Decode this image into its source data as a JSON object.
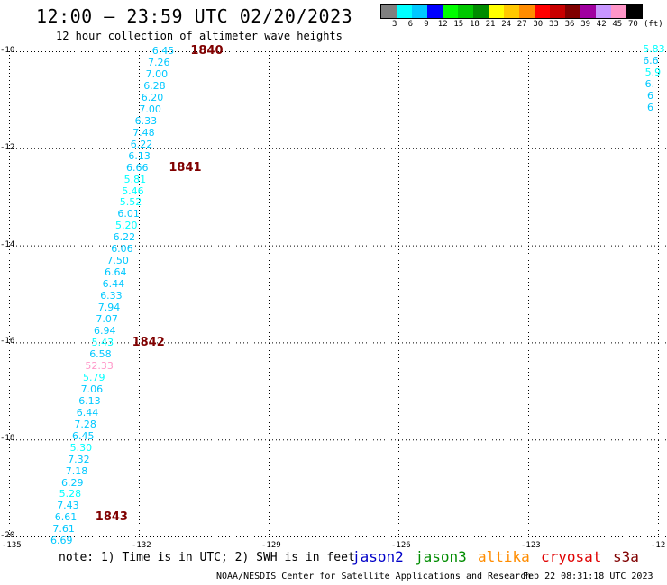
{
  "title": "12:00 – 23:59 UTC 02/20/2023",
  "subtitle": "12 hour collection of altimeter wave heights",
  "colorbar": {
    "colors": [
      "#808080",
      "#00ffff",
      "#00c8ff",
      "#0000ff",
      "#00ff00",
      "#00c800",
      "#008c00",
      "#ffff00",
      "#ffc800",
      "#ff8c00",
      "#ff0000",
      "#c80000",
      "#800000",
      "#a000a0",
      "#c896ff",
      "#ff96c8",
      "#000000"
    ],
    "labels": [
      "3",
      "6",
      "9",
      "12",
      "15",
      "18",
      "21",
      "24",
      "27",
      "30",
      "33",
      "36",
      "39",
      "42",
      "45",
      "70"
    ],
    "unit": "(ft)"
  },
  "map": {
    "lon_min": -135,
    "lon_max": -120,
    "lat_min": -20,
    "lat_max": -10,
    "x_ticks": [
      "-135",
      "-132",
      "-129",
      "-126",
      "-123",
      "-12"
    ],
    "y_ticks": [
      "-10",
      "-12",
      "-14",
      "-16",
      "-18",
      "-20"
    ]
  },
  "track": [
    {
      "lon": -131.4,
      "lat": -10.0,
      "v": "6.45",
      "c": "#00c8ff"
    },
    {
      "lon": -131.5,
      "lat": -10.24,
      "v": "7.26",
      "c": "#00c8ff"
    },
    {
      "lon": -131.55,
      "lat": -10.48,
      "v": "7.00",
      "c": "#00c8ff"
    },
    {
      "lon": -131.6,
      "lat": -10.72,
      "v": "6.28",
      "c": "#00c8ff"
    },
    {
      "lon": -131.65,
      "lat": -10.96,
      "v": "6.20",
      "c": "#00c8ff"
    },
    {
      "lon": -131.7,
      "lat": -11.2,
      "v": "7.00",
      "c": "#00c8ff"
    },
    {
      "lon": -131.8,
      "lat": -11.44,
      "v": "6.33",
      "c": "#00c8ff"
    },
    {
      "lon": -131.85,
      "lat": -11.68,
      "v": "7.48",
      "c": "#00c8ff"
    },
    {
      "lon": -131.9,
      "lat": -11.92,
      "v": "6.22",
      "c": "#00c8ff"
    },
    {
      "lon": -131.95,
      "lat": -12.16,
      "v": "6.13",
      "c": "#00c8ff"
    },
    {
      "lon": -132.0,
      "lat": -12.4,
      "v": "6.66",
      "c": "#00c8ff"
    },
    {
      "lon": -132.05,
      "lat": -12.64,
      "v": "5.81",
      "c": "#00ffff"
    },
    {
      "lon": -132.1,
      "lat": -12.88,
      "v": "5.46",
      "c": "#00ffff"
    },
    {
      "lon": -132.15,
      "lat": -13.12,
      "v": "5.52",
      "c": "#00ffff"
    },
    {
      "lon": -132.2,
      "lat": -13.36,
      "v": "6.01",
      "c": "#00c8ff"
    },
    {
      "lon": -132.25,
      "lat": -13.6,
      "v": "5.20",
      "c": "#00ffff"
    },
    {
      "lon": -132.3,
      "lat": -13.84,
      "v": "6.22",
      "c": "#00c8ff"
    },
    {
      "lon": -132.35,
      "lat": -14.08,
      "v": "6.06",
      "c": "#00c8ff"
    },
    {
      "lon": -132.45,
      "lat": -14.32,
      "v": "7.50",
      "c": "#00c8ff"
    },
    {
      "lon": -132.5,
      "lat": -14.56,
      "v": "6.64",
      "c": "#00c8ff"
    },
    {
      "lon": -132.55,
      "lat": -14.8,
      "v": "6.44",
      "c": "#00c8ff"
    },
    {
      "lon": -132.6,
      "lat": -15.04,
      "v": "6.33",
      "c": "#00c8ff"
    },
    {
      "lon": -132.65,
      "lat": -15.28,
      "v": "7.94",
      "c": "#00c8ff"
    },
    {
      "lon": -132.7,
      "lat": -15.52,
      "v": "7.07",
      "c": "#00c8ff"
    },
    {
      "lon": -132.75,
      "lat": -15.76,
      "v": "6.94",
      "c": "#00c8ff"
    },
    {
      "lon": -132.8,
      "lat": -16.0,
      "v": "5.43",
      "c": "#00ffff"
    },
    {
      "lon": -132.85,
      "lat": -16.24,
      "v": "6.58",
      "c": "#00c8ff"
    },
    {
      "lon": -132.95,
      "lat": -16.48,
      "v": "52.33",
      "c": "#ff96c8"
    },
    {
      "lon": -133.0,
      "lat": -16.72,
      "v": "5.79",
      "c": "#00ffff"
    },
    {
      "lon": -133.05,
      "lat": -16.96,
      "v": "7.06",
      "c": "#00c8ff"
    },
    {
      "lon": -133.1,
      "lat": -17.2,
      "v": "6.13",
      "c": "#00c8ff"
    },
    {
      "lon": -133.15,
      "lat": -17.44,
      "v": "6.44",
      "c": "#00c8ff"
    },
    {
      "lon": -133.2,
      "lat": -17.68,
      "v": "7.28",
      "c": "#00c8ff"
    },
    {
      "lon": -133.25,
      "lat": -17.92,
      "v": "6.45",
      "c": "#00c8ff"
    },
    {
      "lon": -133.3,
      "lat": -18.16,
      "v": "5.30",
      "c": "#00ffff"
    },
    {
      "lon": -133.35,
      "lat": -18.4,
      "v": "7.32",
      "c": "#00c8ff"
    },
    {
      "lon": -133.4,
      "lat": -18.64,
      "v": "7.18",
      "c": "#00c8ff"
    },
    {
      "lon": -133.5,
      "lat": -18.88,
      "v": "6.29",
      "c": "#00c8ff"
    },
    {
      "lon": -133.55,
      "lat": -19.12,
      "v": "5.28",
      "c": "#00ffff"
    },
    {
      "lon": -133.6,
      "lat": -19.36,
      "v": "7.43",
      "c": "#00c8ff"
    },
    {
      "lon": -133.65,
      "lat": -19.6,
      "v": "6.61",
      "c": "#00c8ff"
    },
    {
      "lon": -133.7,
      "lat": -19.84,
      "v": "7.61",
      "c": "#00c8ff"
    },
    {
      "lon": -133.75,
      "lat": -20.08,
      "v": "6.69",
      "c": "#00c8ff"
    }
  ],
  "track_right": [
    {
      "lon": -120.1,
      "lat": -9.96,
      "v": "5.83",
      "c": "#00ffff"
    },
    {
      "lon": -120.1,
      "lat": -10.2,
      "v": "6.6",
      "c": "#00c8ff"
    },
    {
      "lon": -120.05,
      "lat": -10.44,
      "v": "5.9",
      "c": "#00ffff"
    },
    {
      "lon": -120.05,
      "lat": -10.68,
      "v": "6.",
      "c": "#00c8ff"
    },
    {
      "lon": -120.0,
      "lat": -10.92,
      "v": "6",
      "c": "#00c8ff"
    },
    {
      "lon": -120.0,
      "lat": -11.16,
      "v": "6",
      "c": "#00c8ff"
    }
  ],
  "time_marks": [
    {
      "lon": -130.7,
      "lat": -10.0,
      "t": "1840"
    },
    {
      "lon": -131.2,
      "lat": -12.4,
      "t": "1841"
    },
    {
      "lon": -132.05,
      "lat": -16.0,
      "t": "1842"
    },
    {
      "lon": -132.9,
      "lat": -19.6,
      "t": "1843"
    }
  ],
  "note": "note: 1) Time is in UTC; 2) SWH is in feet",
  "satellites": [
    {
      "name": "jason2",
      "color": "#0000c8"
    },
    {
      "name": "jason3",
      "color": "#008c00"
    },
    {
      "name": "altika",
      "color": "#ff8c00"
    },
    {
      "name": "cryosat",
      "color": "#e00000"
    },
    {
      "name": "s3a",
      "color": "#800000"
    }
  ],
  "credit": "NOAA/NESDIS Center for Satellite Applications and Research",
  "timestamp": "Feb 22 08:31:18 UTC 2023"
}
